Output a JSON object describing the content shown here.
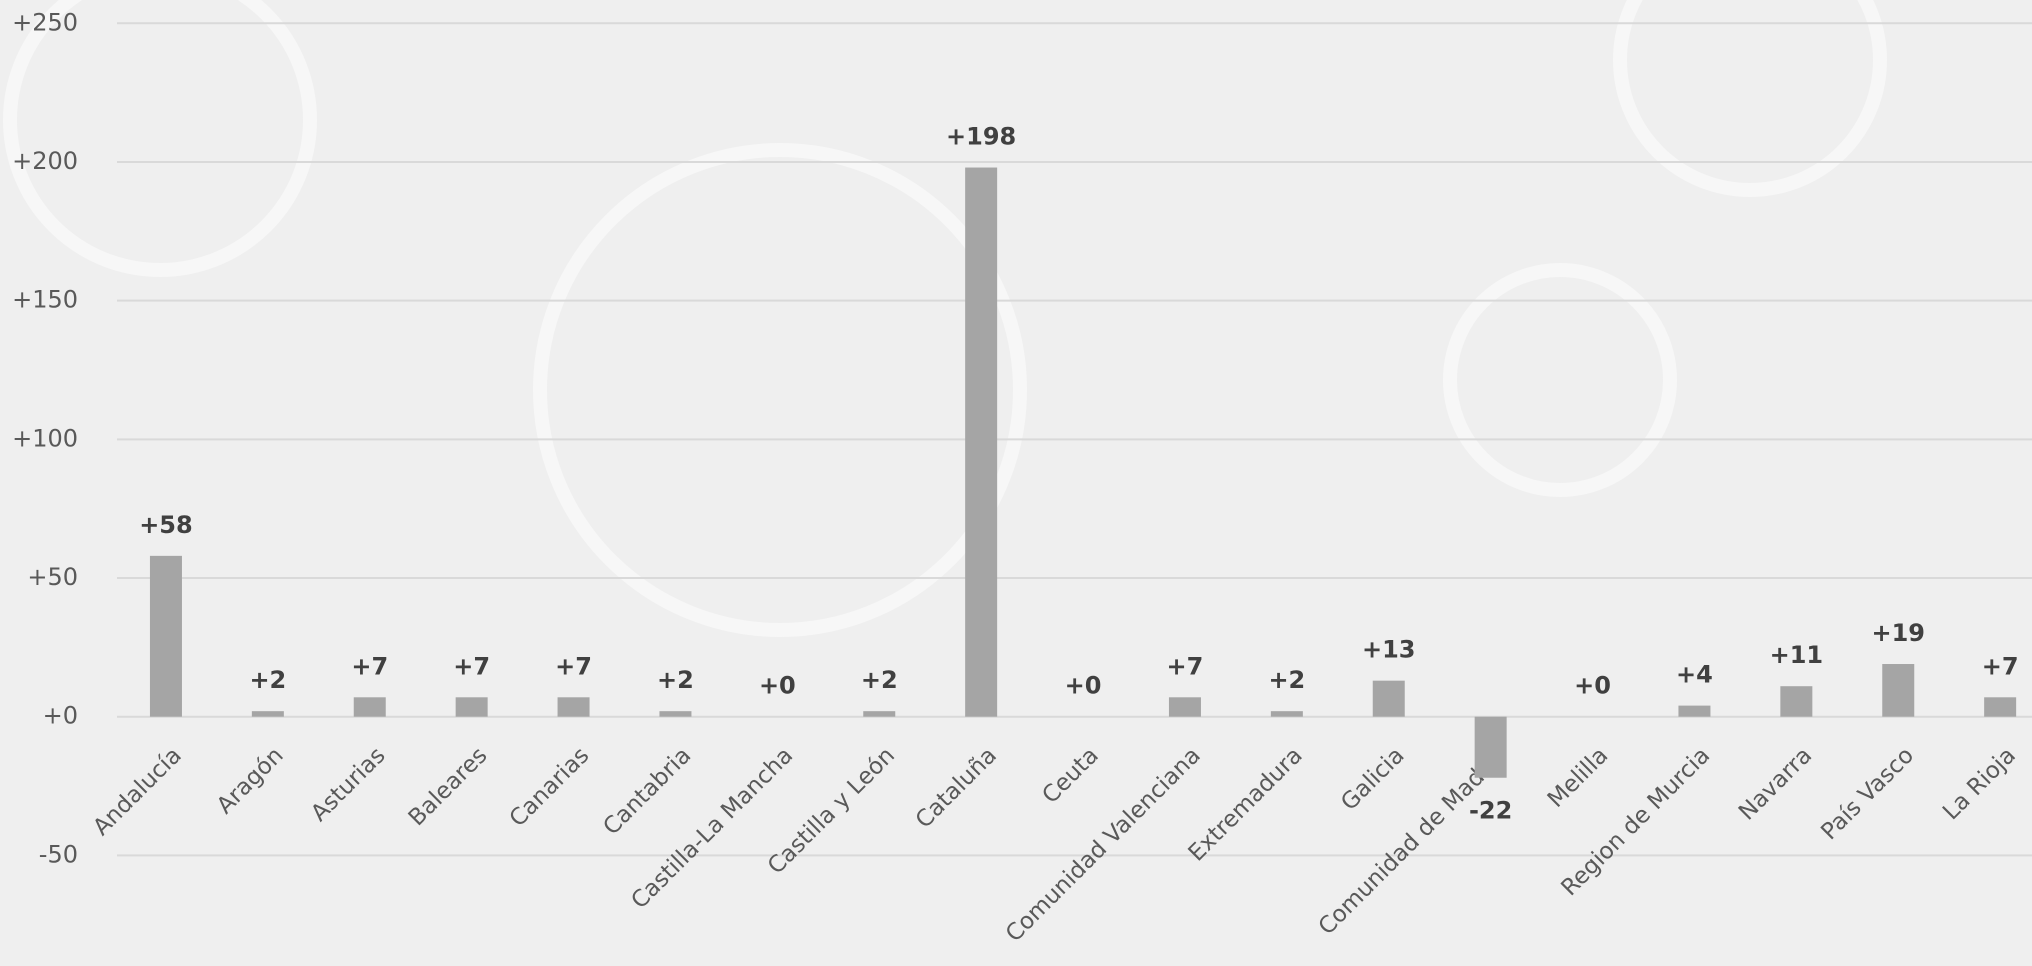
{
  "chart_data": {
    "type": "bar",
    "categories": [
      "Andalucía",
      "Aragón",
      "Asturias",
      "Baleares",
      "Canarias",
      "Cantabria",
      "Castilla-La Mancha",
      "Castilla y León",
      "Cataluña",
      "Ceuta",
      "Comunidad Valenciana",
      "Extremadura",
      "Galicia",
      "Comunidad de Madrid",
      "Melilla",
      "Region de Murcia",
      "Navarra",
      "País Vasco",
      "La Rioja"
    ],
    "values": [
      58,
      2,
      7,
      7,
      7,
      2,
      0,
      2,
      198,
      0,
      7,
      2,
      13,
      -22,
      0,
      4,
      11,
      19,
      7
    ],
    "value_labels": [
      "+58",
      "+2",
      "+7",
      "+7",
      "+7",
      "+2",
      "+0",
      "+2",
      "+198",
      "+0",
      "+7",
      "+2",
      "+13",
      "-22",
      "+0",
      "+4",
      "+11",
      "+19",
      "+7"
    ],
    "color": "#a5a5a5",
    "ylim": [
      -50,
      250
    ],
    "yticks": [
      {
        "value": -50,
        "label": "-50"
      },
      {
        "value": 0,
        "label": "+0"
      },
      {
        "value": 50,
        "label": "+50"
      },
      {
        "value": 100,
        "label": "+100"
      },
      {
        "value": 150,
        "label": "+150"
      },
      {
        "value": 200,
        "label": "+200"
      },
      {
        "value": 250,
        "label": "+250"
      }
    ],
    "grid": true
  }
}
